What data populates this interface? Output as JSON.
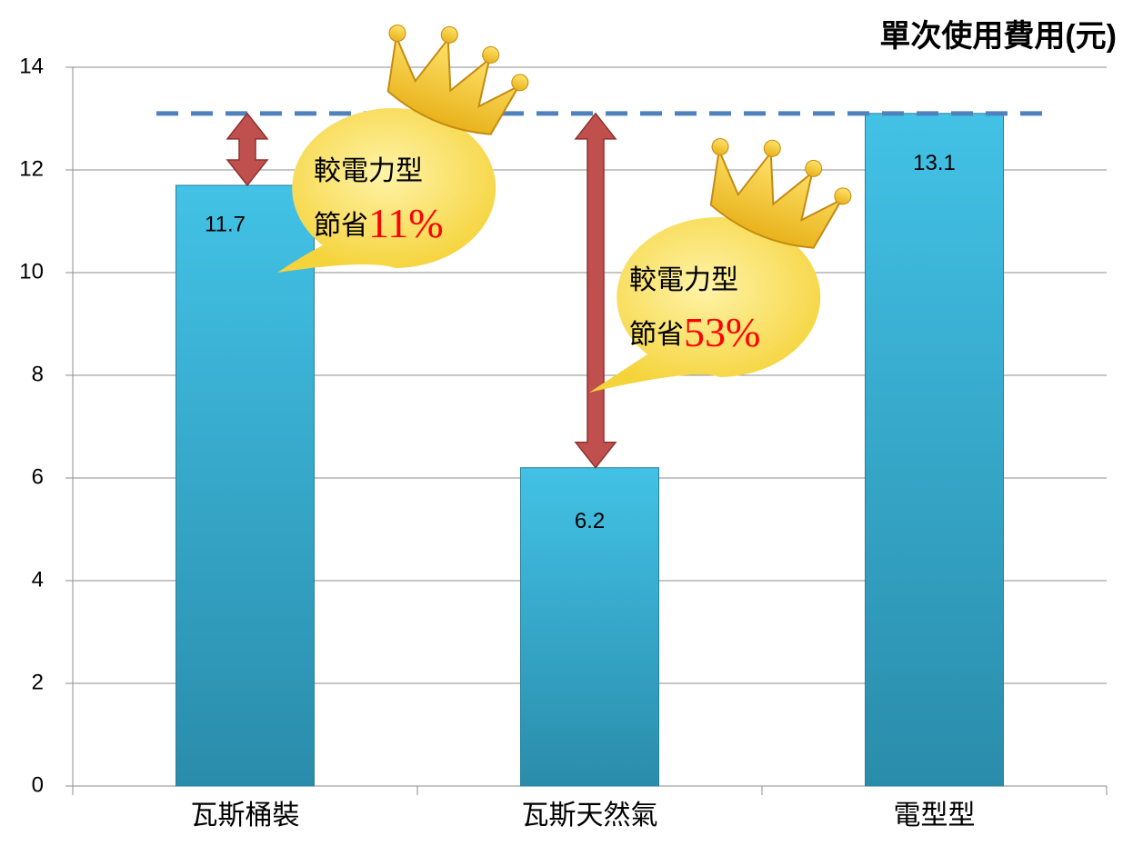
{
  "chart_data": {
    "type": "bar",
    "title": "單次使用費用(元)",
    "categories": [
      "瓦斯桶裝",
      "瓦斯天然氣",
      "電型型"
    ],
    "values": [
      11.7,
      6.2,
      13.1
    ],
    "color": "#3cb8dc",
    "ylim": [
      0,
      14
    ],
    "yticks": [
      0,
      2,
      4,
      6,
      8,
      10,
      12,
      14
    ],
    "grid": true,
    "annotations": [
      {
        "line1": "較電力型",
        "line2": "節省",
        "highlight": "11%"
      },
      {
        "line1": "較電力型",
        "line2": "節省",
        "highlight": "53%"
      }
    ]
  }
}
